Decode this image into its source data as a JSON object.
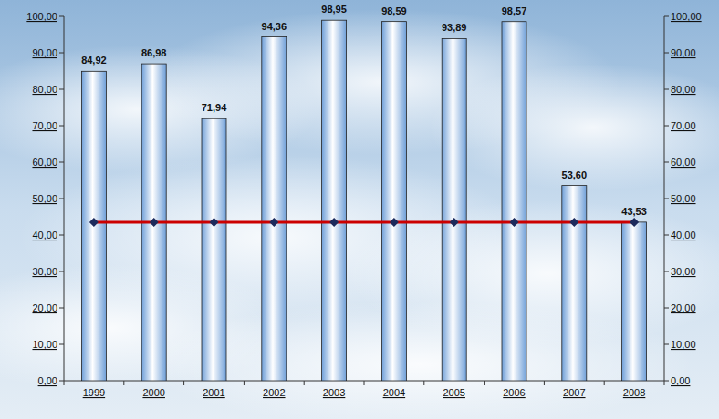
{
  "chart_data": {
    "type": "bar",
    "categories": [
      "1999",
      "2000",
      "2001",
      "2002",
      "2003",
      "2004",
      "2005",
      "2006",
      "2007",
      "2008"
    ],
    "series": [
      {
        "type": "bar",
        "color": "#6f9fd8",
        "values": [
          84.92,
          86.98,
          71.94,
          94.36,
          98.95,
          98.59,
          93.89,
          98.57,
          53.6,
          43.53
        ],
        "value_labels": [
          "84,92",
          "86,98",
          "71,94",
          "94,36",
          "98,95",
          "98,59",
          "93,89",
          "98,57",
          "53,60",
          "43,53"
        ]
      },
      {
        "type": "line",
        "color": "#cc0000",
        "marker": "diamond",
        "line_style": "solid",
        "values": [
          43.53,
          43.53,
          43.53,
          43.53,
          43.53,
          43.53,
          43.53,
          43.53,
          43.53,
          43.53
        ]
      }
    ],
    "ylim": [
      0,
      100
    ],
    "yticks": [
      {
        "value": 0,
        "label": "0,00"
      },
      {
        "value": 10,
        "label": "10,00"
      },
      {
        "value": 20,
        "label": "20,00"
      },
      {
        "value": 30,
        "label": "30,00"
      },
      {
        "value": 40,
        "label": "40,00"
      },
      {
        "value": 50,
        "label": "50,00"
      },
      {
        "value": 60,
        "label": "60,00"
      },
      {
        "value": 70,
        "label": "70,00"
      },
      {
        "value": 80,
        "label": "80,00"
      },
      {
        "value": 90,
        "label": "90,00"
      },
      {
        "value": 100,
        "label": "100,00"
      }
    ],
    "y2lim": [
      0,
      100
    ],
    "y2ticks": [
      {
        "value": 0,
        "label": "0,00"
      },
      {
        "value": 10,
        "label": "10,00"
      },
      {
        "value": 20,
        "label": "20,00"
      },
      {
        "value": 30,
        "label": "30,00"
      },
      {
        "value": 40,
        "label": "40,00"
      },
      {
        "value": 50,
        "label": "50,00"
      },
      {
        "value": 60,
        "label": "60,00"
      },
      {
        "value": 70,
        "label": "70,00"
      },
      {
        "value": 80,
        "label": "80,00"
      },
      {
        "value": 90,
        "label": "90,00"
      },
      {
        "value": 100,
        "label": "100,00"
      }
    ],
    "grid": false,
    "data_labels": true
  }
}
